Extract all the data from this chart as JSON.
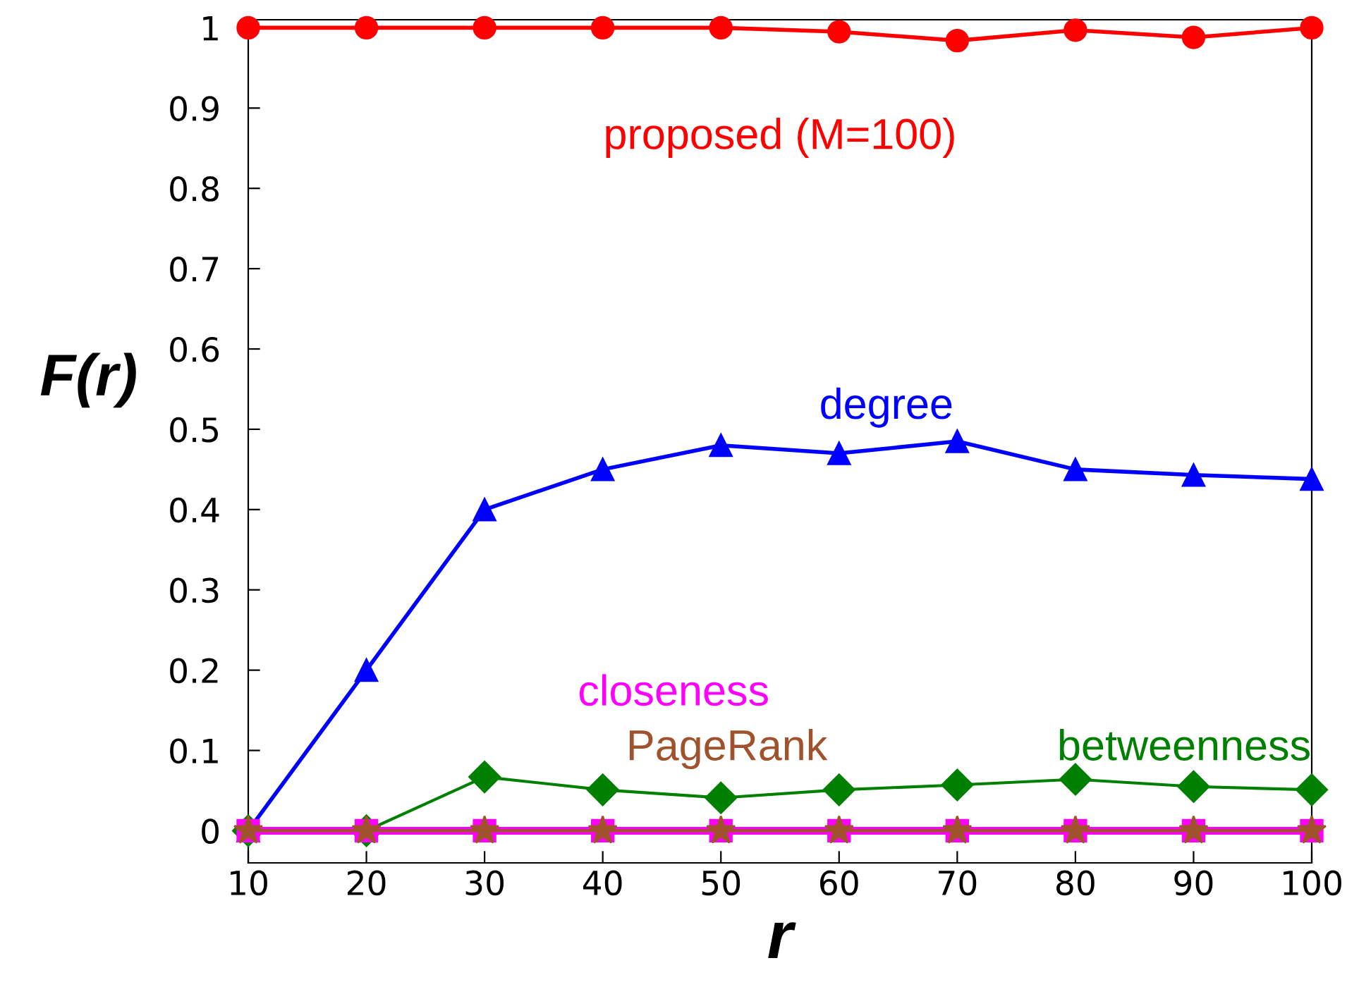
{
  "chart_data": {
    "type": "line",
    "xlabel": "r",
    "ylabel": "F(r)",
    "x": [
      10,
      20,
      30,
      40,
      50,
      60,
      70,
      80,
      90,
      100
    ],
    "series": [
      {
        "name": "proposed (M=100)",
        "color": "#ff0000",
        "marker": "circle",
        "values": [
          1,
          1,
          1,
          1,
          1,
          0.995,
          0.984,
          0.997,
          0.988,
          1
        ]
      },
      {
        "name": "degree",
        "color": "#0000ff",
        "marker": "triangle",
        "values": [
          0,
          0.2,
          0.4,
          0.45,
          0.48,
          0.47,
          0.485,
          0.45,
          0.443,
          0.438
        ]
      },
      {
        "name": "betweenness",
        "color": "#008000",
        "marker": "diamond",
        "values": [
          0,
          0,
          0.067,
          0.051,
          0.041,
          0.051,
          0.057,
          0.064,
          0.055,
          0.051
        ]
      },
      {
        "name": "PageRank",
        "color": "#a0522d",
        "marker": "star",
        "values": [
          0,
          0,
          0,
          0,
          0,
          0,
          0,
          0,
          0,
          0
        ]
      },
      {
        "name": "closeness",
        "color": "#ff00ff",
        "marker": "square",
        "values": [
          0,
          0,
          0,
          0,
          0,
          0,
          0,
          0,
          0,
          0
        ]
      }
    ],
    "xlim": [
      10,
      100
    ],
    "ylim": [
      -0.04,
      1.01
    ],
    "xticks": [
      10,
      20,
      30,
      40,
      50,
      60,
      70,
      80,
      90,
      100
    ],
    "yticks": [
      0,
      0.1,
      0.2,
      0.3,
      0.4,
      0.5,
      0.6,
      0.7,
      0.8,
      0.9,
      1
    ],
    "grid": false,
    "legend": false
  }
}
